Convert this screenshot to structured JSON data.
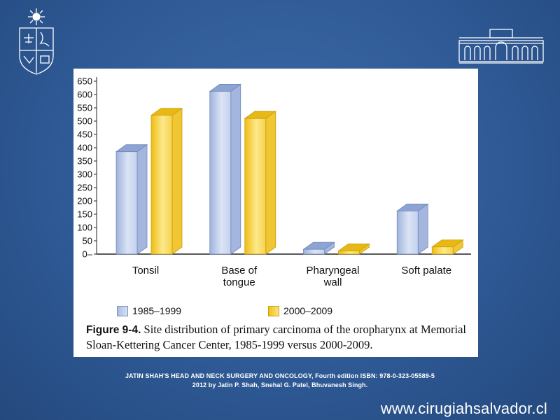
{
  "chart_data": {
    "type": "bar",
    "categories": [
      "Tonsil",
      "Base of tongue",
      "Pharyngeal wall",
      "Soft palate"
    ],
    "category_lines": [
      [
        "Tonsil"
      ],
      [
        "Base of",
        "tongue"
      ],
      [
        "Pharyngeal",
        "wall"
      ],
      [
        "Soft palate"
      ]
    ],
    "series": [
      {
        "name": "1985–1999",
        "values": [
          385,
          612,
          18,
          162
        ],
        "color": "#b8c8e8"
      },
      {
        "name": "2000–2009",
        "values": [
          522,
          510,
          12,
          27
        ],
        "color": "#f5cf3a"
      }
    ],
    "yticks": [
      0,
      50,
      100,
      150,
      200,
      250,
      300,
      350,
      400,
      450,
      500,
      550,
      600,
      650
    ],
    "ylim": [
      0,
      650
    ],
    "xlabel": "",
    "ylabel": "",
    "grid": false,
    "legend_position": "bottom",
    "style": "3d-bars"
  },
  "figure": {
    "caption_label": "Figure 9-4.",
    "caption_text": "Site distribution of primary carcinoma of the oropharynx at Memorial Sloan-Kettering Cancer Center, 1985-1999 versus 2000-2009."
  },
  "source": {
    "line1": "JATIN SHAH'S HEAD AND NECK SURGERY AND ONCOLOGY, Fourth edition ISBN: 978-0-323-05589-5",
    "line2": "2012 by Jatin P. Shah, Snehal G. Patel, Bhuvanesh Singh."
  },
  "website": "www.cirugiahsalvador.cl",
  "icons": {
    "left_logo": "university-crest-icon",
    "right_logo": "hospital-building-icon"
  },
  "colors": {
    "background": "#2f5a96",
    "bar_a": "#b8c8e8",
    "bar_b": "#f5cf3a"
  }
}
